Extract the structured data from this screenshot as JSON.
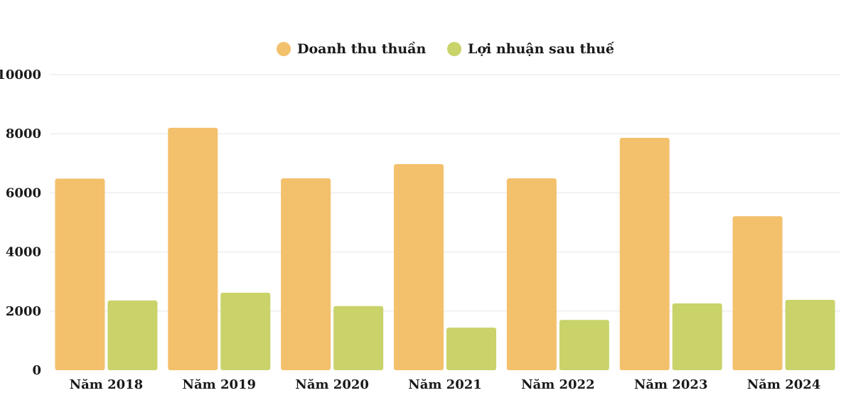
{
  "chart_data": {
    "type": "bar",
    "categories": [
      "Năm 2018",
      "Năm 2019",
      "Năm 2020",
      "Năm 2021",
      "Năm 2022",
      "Năm 2023",
      "Năm 2024"
    ],
    "series": [
      {
        "name": "Doanh thu thuần",
        "color": "#f3c06c",
        "values": [
          6480,
          8200,
          6490,
          6970,
          6490,
          7860,
          5210
        ]
      },
      {
        "name": "Lợi nhuận sau thuế",
        "color": "#c9d36a",
        "values": [
          2360,
          2620,
          2170,
          1440,
          1700,
          2260,
          2380
        ]
      }
    ],
    "yticks": [
      "0",
      "2000",
      "4000",
      "6000",
      "8000",
      "10000"
    ],
    "ylim": [
      0,
      10000
    ],
    "grid": true,
    "legend_position": "top-center"
  }
}
